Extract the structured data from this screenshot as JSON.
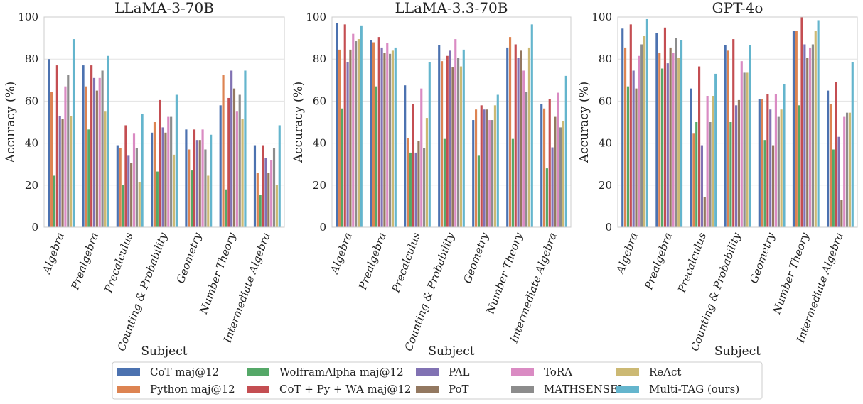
{
  "chart_data": [
    {
      "type": "bar",
      "title": "LLaMA-3-70B",
      "xlabel": "Subject",
      "ylabel": "Accuracy (%)",
      "ylim": [
        0,
        100
      ],
      "yticks": [
        0,
        20,
        40,
        60,
        80,
        100
      ],
      "grid": true,
      "categories": [
        "Algebra",
        "Prealgebra",
        "Precalculus",
        "Counting & Probability",
        "Geometry",
        "Number Theory",
        "Intermediate Algebra"
      ],
      "series": [
        {
          "name": "CoT maj@12",
          "values": [
            80,
            77,
            39,
            45,
            46.5,
            58,
            39
          ]
        },
        {
          "name": "Python maj@12",
          "values": [
            64.5,
            67,
            37.5,
            50,
            37,
            72.5,
            26
          ]
        },
        {
          "name": "WolframAlpha maj@12",
          "values": [
            24.5,
            46.5,
            20,
            26.5,
            27,
            18,
            15.5
          ]
        },
        {
          "name": "CoT + Py + WA maj@12",
          "values": [
            77,
            77,
            48.5,
            60.5,
            46.5,
            61.5,
            39
          ]
        },
        {
          "name": "PAL",
          "values": [
            53,
            71,
            34,
            47.5,
            41.5,
            74.5,
            33
          ]
        },
        {
          "name": "PoT",
          "values": [
            51.5,
            65,
            30.5,
            45,
            41.5,
            66,
            26
          ]
        },
        {
          "name": "ToRA",
          "values": [
            67,
            71,
            44.5,
            52.5,
            46.5,
            55,
            32
          ]
        },
        {
          "name": "MATHSENSEI",
          "values": [
            72.5,
            74.5,
            37.5,
            52.5,
            37,
            63,
            37.5
          ]
        },
        {
          "name": "ReAct",
          "values": [
            53,
            55,
            21.5,
            34.5,
            24.5,
            51.5,
            20
          ]
        },
        {
          "name": "Multi-TAG (ours)",
          "values": [
            89.5,
            81.5,
            54,
            63,
            44,
            74.5,
            48.5
          ]
        }
      ]
    },
    {
      "type": "bar",
      "title": "LLaMA-3.3-70B",
      "xlabel": "Subject",
      "ylabel": "Accuracy (%)",
      "ylim": [
        0,
        100
      ],
      "yticks": [
        0,
        20,
        40,
        60,
        80,
        100
      ],
      "grid": true,
      "categories": [
        "Algebra",
        "Prealgebra",
        "Precalculus",
        "Counting & Probability",
        "Geometry",
        "Number Theory",
        "Intermediate Algebra"
      ],
      "series": [
        {
          "name": "CoT maj@12",
          "values": [
            97,
            89,
            67.5,
            86.5,
            51,
            85.5,
            58.5
          ]
        },
        {
          "name": "Python maj@12",
          "values": [
            84.5,
            88,
            42.5,
            79,
            56,
            90.5,
            56.5
          ]
        },
        {
          "name": "WolframAlpha maj@12",
          "values": [
            56.5,
            67,
            35.5,
            42,
            34,
            42,
            28
          ]
        },
        {
          "name": "CoT + Py + WA maj@12",
          "values": [
            96.5,
            90.5,
            58.5,
            81.5,
            58,
            87,
            61
          ]
        },
        {
          "name": "PAL",
          "values": [
            78.5,
            85.5,
            35.5,
            84,
            56,
            80.5,
            38
          ]
        },
        {
          "name": "PoT",
          "values": [
            84.5,
            83,
            41,
            76,
            56,
            84,
            52.5
          ]
        },
        {
          "name": "ToRA",
          "values": [
            92,
            87.5,
            66,
            89.5,
            51,
            74.5,
            64
          ]
        },
        {
          "name": "MATHSENSEI",
          "values": [
            88.5,
            82.5,
            37.5,
            80.5,
            51,
            64.5,
            47.5
          ]
        },
        {
          "name": "ReAct",
          "values": [
            89.5,
            84,
            52,
            76.5,
            58,
            85.5,
            50.5
          ]
        },
        {
          "name": "Multi-TAG (ours)",
          "values": [
            96,
            85.5,
            78.5,
            84.5,
            63,
            96.5,
            72
          ]
        }
      ]
    },
    {
      "type": "bar",
      "title": "GPT-4o",
      "xlabel": "Subject",
      "ylabel": "Accuracy (%)",
      "ylim": [
        0,
        100
      ],
      "yticks": [
        0,
        20,
        40,
        60,
        80,
        100
      ],
      "grid": true,
      "categories": [
        "Algebra",
        "Prealgebra",
        "Precalculus",
        "Counting & Probability",
        "Geometry",
        "Number Theory",
        "Intermediate Algebra"
      ],
      "series": [
        {
          "name": "CoT maj@12",
          "values": [
            94.5,
            92.5,
            66,
            86.5,
            61,
            93.5,
            65
          ]
        },
        {
          "name": "Python maj@12",
          "values": [
            85.5,
            83,
            44.5,
            84,
            61,
            93.5,
            58.5
          ]
        },
        {
          "name": "WolframAlpha maj@12",
          "values": [
            67,
            75.5,
            50,
            50,
            41.5,
            58,
            37
          ]
        },
        {
          "name": "CoT + Py + WA maj@12",
          "values": [
            96.5,
            95,
            76.5,
            89.5,
            63.5,
            100,
            69
          ]
        },
        {
          "name": "PAL",
          "values": [
            74.5,
            78,
            39,
            58,
            56,
            87,
            43
          ]
        },
        {
          "name": "PoT",
          "values": [
            66,
            85.5,
            14.5,
            60.5,
            39,
            80.5,
            13
          ]
        },
        {
          "name": "ToRA",
          "values": [
            81.5,
            83,
            62.5,
            79,
            63.5,
            85.5,
            52.5
          ]
        },
        {
          "name": "MATHSENSEI",
          "values": [
            87,
            90,
            50,
            73.5,
            52.5,
            87,
            54.5
          ]
        },
        {
          "name": "ReAct",
          "values": [
            91,
            80.5,
            62.5,
            73.5,
            56,
            93.5,
            54.5
          ]
        },
        {
          "name": "Multi-TAG (ours)",
          "values": [
            99,
            89,
            73,
            86.5,
            68,
            98.5,
            78.5
          ]
        }
      ]
    }
  ],
  "legend": {
    "placement": "bottom",
    "items": [
      {
        "name": "CoT maj@12",
        "color": "#4c72b0"
      },
      {
        "name": "WolframAlpha maj@12",
        "color": "#55a868"
      },
      {
        "name": "PAL",
        "color": "#8172b3"
      },
      {
        "name": "ToRA",
        "color": "#da8bc3"
      },
      {
        "name": "ReAct",
        "color": "#ccb974"
      },
      {
        "name": "Python maj@12",
        "color": "#dd8452"
      },
      {
        "name": "CoT + Py + WA maj@12",
        "color": "#c44e52"
      },
      {
        "name": "PoT",
        "color": "#937860"
      },
      {
        "name": "MATHSENSEI",
        "color": "#8c8c8c"
      },
      {
        "name": "Multi-TAG (ours)",
        "color": "#64b5cd"
      }
    ]
  },
  "series_colors": {
    "CoT maj@12": "#4c72b0",
    "Python maj@12": "#dd8452",
    "WolframAlpha maj@12": "#55a868",
    "CoT + Py + WA maj@12": "#c44e52",
    "PAL": "#8172b3",
    "PoT": "#937860",
    "ToRA": "#da8bc3",
    "MATHSENSEI": "#8c8c8c",
    "ReAct": "#ccb974",
    "Multi-TAG (ours)": "#64b5cd"
  }
}
